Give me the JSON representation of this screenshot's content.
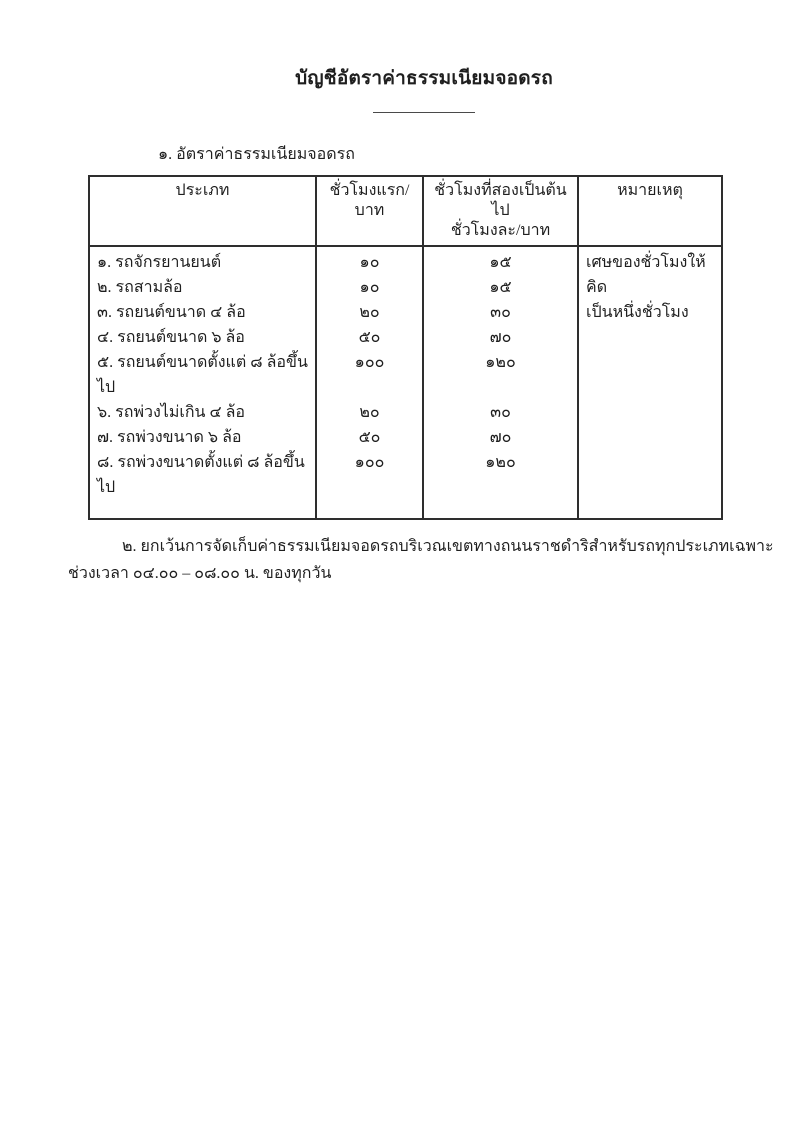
{
  "doc": {
    "title": "บัญชีอัตราค่าธรรมเนียมจอดรถ",
    "section1": {
      "heading": "๑. อัตราค่าธรรมเนียมจอดรถ"
    },
    "fee_table": {
      "headers": {
        "type": "ประเภท",
        "first_hour": "ชั่วโมงแรก/บาท",
        "subsequent_hours": "ชั่วโมงที่สองเป็นต้นไป\nชั่วโมงละ/บาท",
        "remark": "หมายเหตุ"
      },
      "rows": [
        {
          "type": "๑. รถจักรยานยนต์",
          "first_hour": "๑๐",
          "subsequent_hours": "๑๕"
        },
        {
          "type": "๒. รถสามล้อ",
          "first_hour": "๑๐",
          "subsequent_hours": "๑๕"
        },
        {
          "type": "๓. รถยนต์ขนาด ๔ ล้อ",
          "first_hour": "๒๐",
          "subsequent_hours": "๓๐"
        },
        {
          "type": "๔. รถยนต์ขนาด ๖ ล้อ",
          "first_hour": "๕๐",
          "subsequent_hours": "๗๐"
        },
        {
          "type": "๕. รถยนต์ขนาดตั้งแต่ ๘ ล้อขึ้นไป",
          "first_hour": "๑๐๐",
          "subsequent_hours": "๑๒๐"
        },
        {
          "type": "๖. รถพ่วงไม่เกิน ๔ ล้อ",
          "first_hour": "๒๐",
          "subsequent_hours": "๓๐"
        },
        {
          "type": "๗. รถพ่วงขนาด ๖ ล้อ",
          "first_hour": "๕๐",
          "subsequent_hours": "๗๐"
        },
        {
          "type": "๘. รถพ่วงขนาดตั้งแต่ ๘ ล้อขึ้นไป",
          "first_hour": "๑๐๐",
          "subsequent_hours": "๑๒๐"
        }
      ],
      "remark_note": "เศษของชั่วโมงให้คิด\nเป็นหนึ่งชั่วโมง"
    },
    "section2": {
      "text": "๒. ยกเว้นการจัดเก็บค่าธรรมเนียมจอดรถบริเวณเขตทางถนนราชดำริสำหรับรถทุกประเภทเฉพาะ\nช่วงเวลา ๐๔.๐๐ – ๐๘.๐๐ น. ของทุกวัน"
    }
  }
}
